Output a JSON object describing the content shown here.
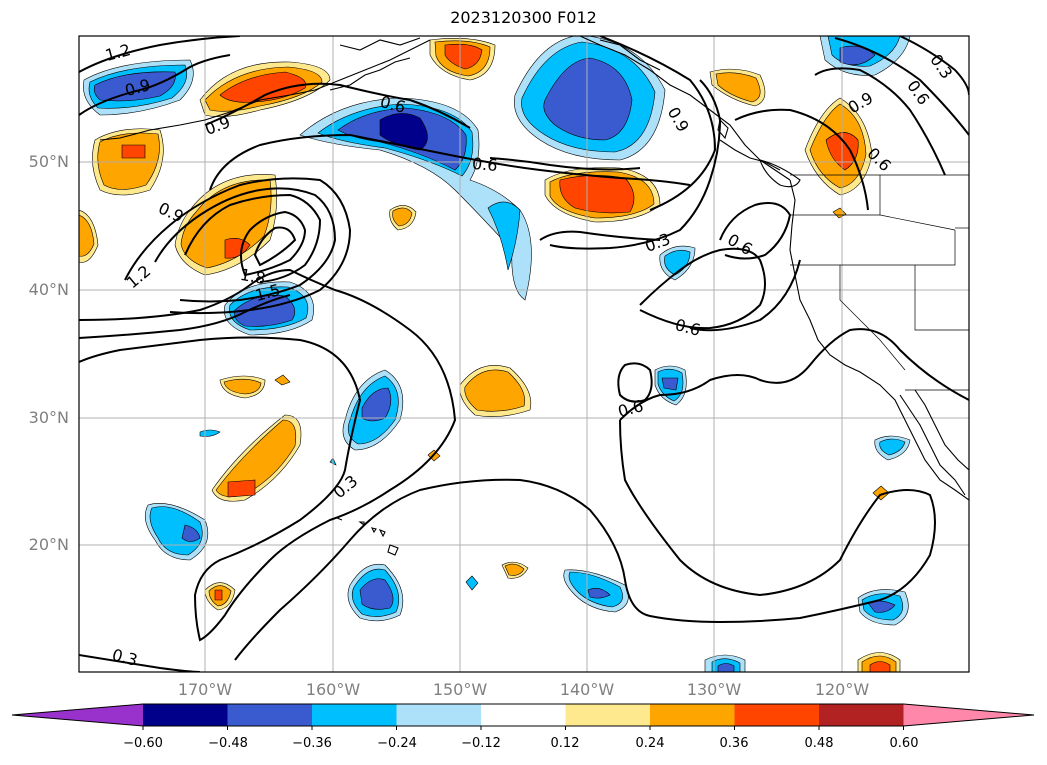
{
  "title": "2023120300 F012",
  "lat_labels": [
    "50°N",
    "40°N",
    "30°N",
    "20°N"
  ],
  "lon_labels": [
    "170°W",
    "160°W",
    "150°W",
    "140°W",
    "130°W",
    "120°W"
  ],
  "contour_labels": [
    "1.2",
    "0.9",
    "0.9",
    "0.6",
    "0.6",
    "0.9",
    "1.2",
    "1.8",
    "1.5",
    "0.3",
    "0.6",
    "0.6",
    "0.6",
    "0.3",
    "0.3",
    "0.9",
    "0.6",
    "0.3",
    "0.6",
    "0.9"
  ],
  "colorbar": {
    "ticks": [
      "−0.60",
      "−0.48",
      "−0.36",
      "−0.24",
      "−0.12",
      "0.12",
      "0.24",
      "0.36",
      "0.48",
      "0.60"
    ],
    "colors": [
      "#9932CC",
      "#00008B",
      "#3A5BD0",
      "#00BFFF",
      "#ADE1FA",
      "#FFFFFF",
      "#FFE98F",
      "#FFA500",
      "#FF4500",
      "#B22222",
      "#FF88AA"
    ]
  },
  "fill_colors": {
    "light_blue": "#ADE1FA",
    "blue": "#00BFFF",
    "royal_blue": "#3A5BD0",
    "navy": "#00008B",
    "light_yellow": "#FFE98F",
    "orange": "#FFA500",
    "red_orange": "#FF4500"
  }
}
